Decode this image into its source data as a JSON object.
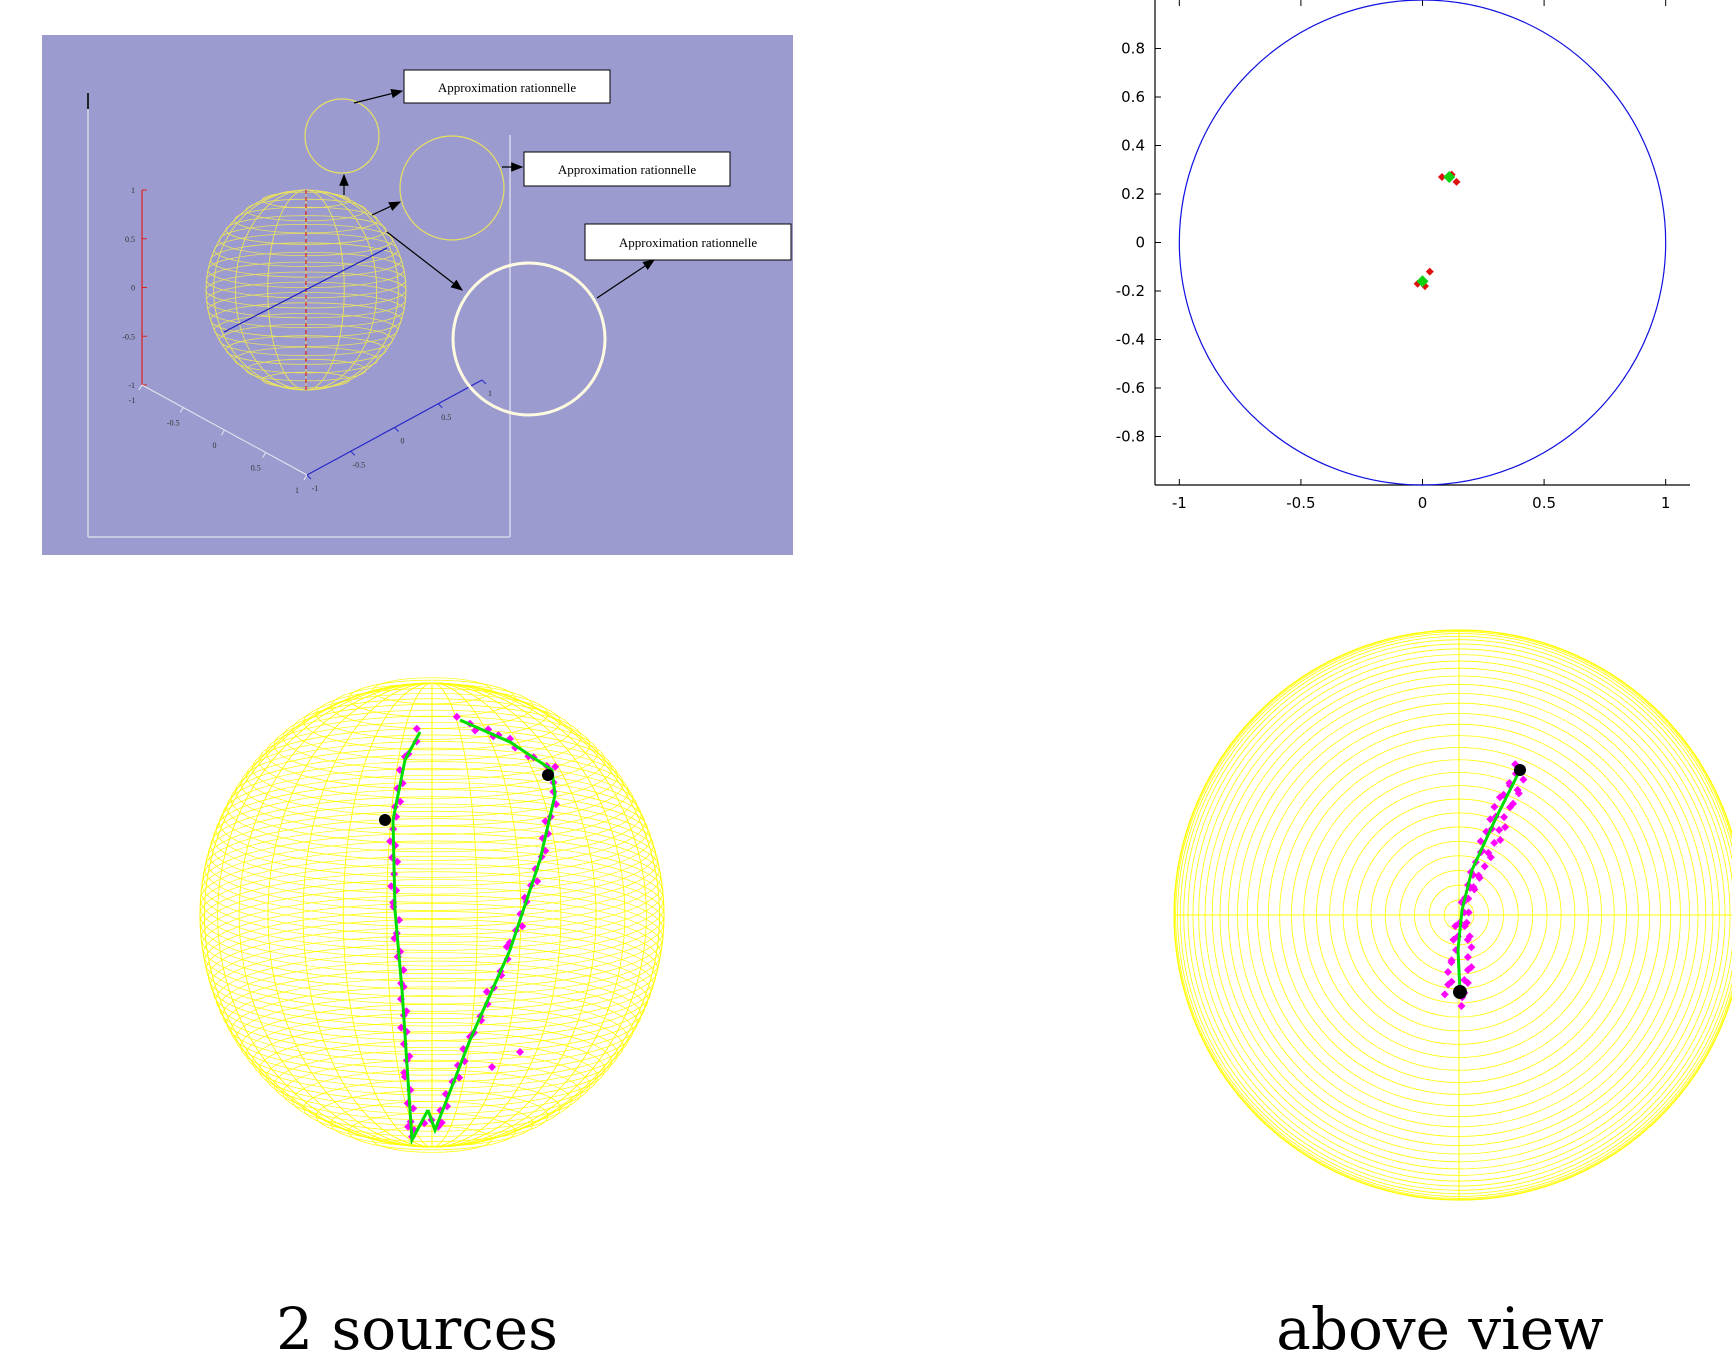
{
  "panel_3d": {
    "callouts": [
      {
        "label": "Approximation rationnelle"
      },
      {
        "label": "Approximation rationnelle"
      },
      {
        "label": "Approximation rationnelle"
      }
    ],
    "z_ticks": [
      "1",
      "0.5",
      "0",
      "-0.5",
      "-1"
    ],
    "x_ticks": [
      "-1",
      "-0.5",
      "0",
      "0.5",
      "1"
    ],
    "y_ticks": [
      "-1",
      "-0.5",
      "0",
      "0.5",
      "1"
    ],
    "colors": {
      "background": "#9b9bd0",
      "wire": "#e8e060",
      "z_axis": "#e02020",
      "diameter": "#2020c0",
      "highlight_circle": "#fffbe0"
    }
  },
  "chart_data": {
    "type": "scatter",
    "title": "",
    "xlabel": "",
    "ylabel": "",
    "xlim": [
      -1.1,
      1.1
    ],
    "ylim": [
      -1.0,
      1.0
    ],
    "x_ticks": [
      "-1",
      "-0.5",
      "0",
      "0.5",
      "1"
    ],
    "y_ticks": [
      "0.8",
      "0.6",
      "0.4",
      "0.2",
      "0",
      "-0.2",
      "-0.4",
      "-0.6",
      "-0.8"
    ],
    "unit_circle": {
      "radius": 1,
      "color": "#1010e0"
    },
    "series": [
      {
        "color": "#e01010",
        "marker": "diamond",
        "points": [
          [
            0.08,
            0.27
          ],
          [
            0.12,
            0.28
          ],
          [
            0.14,
            0.25
          ],
          [
            -0.02,
            -0.17
          ],
          [
            0.01,
            -0.18
          ],
          [
            0.03,
            -0.12
          ]
        ]
      },
      {
        "color": "#10d010",
        "marker": "diamond",
        "points": [
          [
            0.11,
            0.27
          ],
          [
            0.0,
            -0.16
          ]
        ]
      }
    ]
  },
  "sphere_sources": {
    "caption": "2 sources",
    "colors": {
      "wire": "#ffff00",
      "trace": "#ff00ff",
      "fit": "#00dd00",
      "source": "#000000"
    }
  },
  "sphere_above": {
    "caption": "above view",
    "colors": {
      "wire": "#ffff00",
      "trace": "#ff00ff",
      "fit": "#00dd00",
      "source": "#000000"
    }
  }
}
